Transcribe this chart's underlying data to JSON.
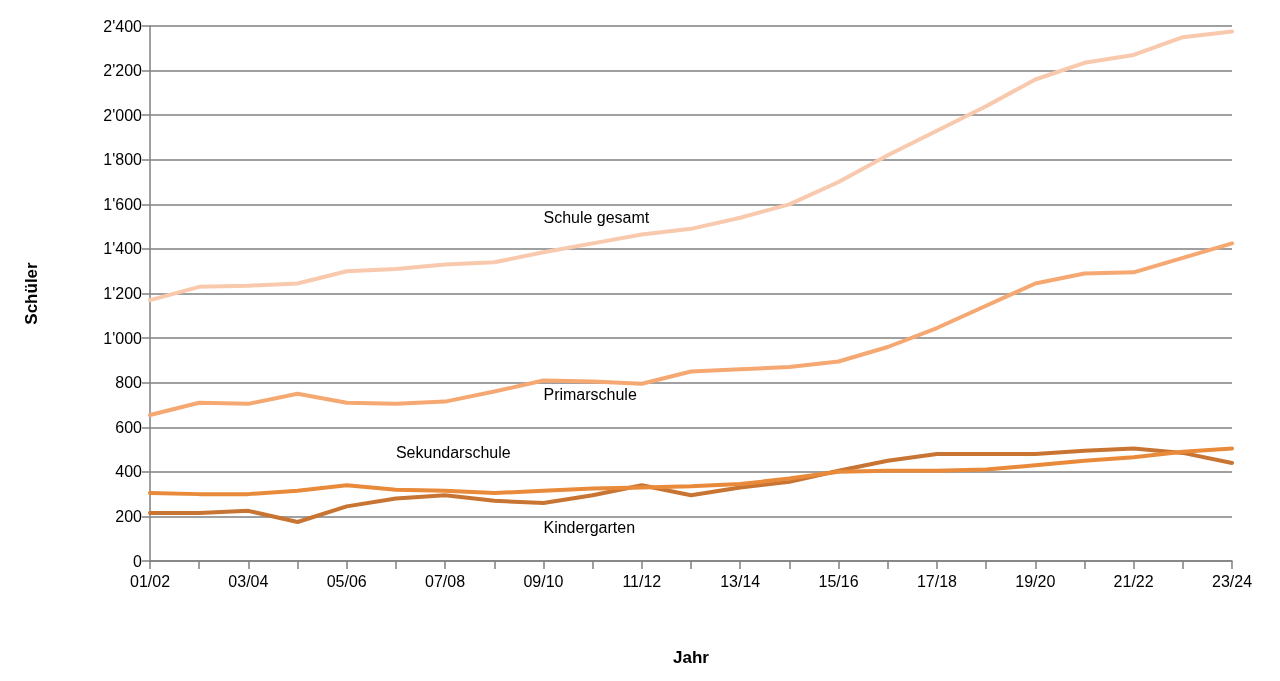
{
  "chart_data": {
    "type": "line",
    "xlabel": "Jahr",
    "ylabel": "Schüler",
    "categories": [
      "01/02",
      null,
      "03/04",
      null,
      "05/06",
      null,
      "07/08",
      null,
      "09/10",
      null,
      "11/12",
      null,
      "13/14",
      null,
      "15/16",
      null,
      "17/18",
      null,
      "19/20",
      null,
      "21/22",
      null,
      "23/24"
    ],
    "series": [
      {
        "name": "Schule gesamt",
        "color": "#f9c9ad",
        "values": [
          1170,
          1230,
          1235,
          1245,
          1300,
          1310,
          1330,
          1340,
          1385,
          1425,
          1465,
          1490,
          1540,
          1600,
          1700,
          1820,
          1930,
          2040,
          2160,
          2235,
          2270,
          2350,
          2375
        ]
      },
      {
        "name": "Primarschule",
        "color": "#f5a872",
        "values": [
          655,
          710,
          705,
          750,
          710,
          705,
          715,
          760,
          810,
          805,
          795,
          850,
          860,
          870,
          895,
          960,
          1045,
          1145,
          1245,
          1290,
          1295,
          1360,
          1425
        ]
      },
      {
        "name": "Sekundarschule",
        "color": "#e88a3a",
        "values": [
          305,
          300,
          300,
          315,
          340,
          320,
          315,
          305,
          315,
          325,
          330,
          335,
          345,
          370,
          400,
          405,
          405,
          410,
          430,
          450,
          465,
          490,
          505
        ]
      },
      {
        "name": "Kindergarten",
        "color": "#c87533",
        "values": [
          215,
          215,
          225,
          175,
          245,
          280,
          295,
          270,
          260,
          295,
          340,
          295,
          330,
          355,
          405,
          450,
          480,
          480,
          480,
          495,
          505,
          485,
          440
        ]
      }
    ],
    "ylim": [
      0,
      2400
    ],
    "yticks": [
      0,
      200,
      400,
      600,
      800,
      {
        "value": 1000,
        "label": "1'000"
      },
      {
        "value": 1200,
        "label": "1'200"
      },
      {
        "value": 1400,
        "label": "1'400"
      },
      {
        "value": 1600,
        "label": "1'600"
      },
      {
        "value": 1800,
        "label": "1'800"
      },
      {
        "value": 2000,
        "label": "2'000"
      },
      {
        "value": 2200,
        "label": "2'200"
      },
      {
        "value": 2400,
        "label": "2'400"
      }
    ],
    "grid": "y",
    "legend": false,
    "marker": "none",
    "line_style": "solid"
  }
}
